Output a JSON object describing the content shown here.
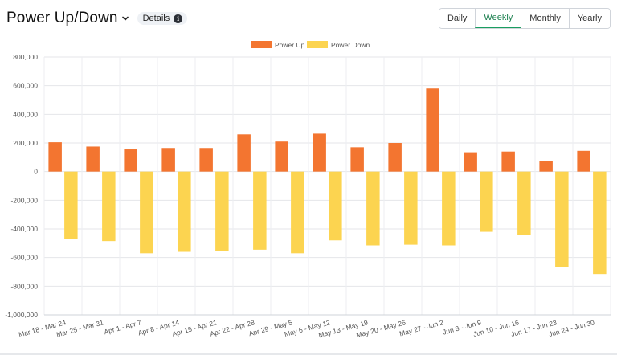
{
  "header": {
    "title": "Power Up/Down",
    "details_label": "Details",
    "info_icon": "info-icon",
    "dropdown_icon": "chevron-down-icon"
  },
  "tabs": [
    {
      "label": "Daily",
      "active": false
    },
    {
      "label": "Weekly",
      "active": true
    },
    {
      "label": "Monthly",
      "active": false
    },
    {
      "label": "Yearly",
      "active": false
    }
  ],
  "colors": {
    "up": "#f37530",
    "down": "#fcd450",
    "active_tab": "#1a9e60"
  },
  "chart_data": {
    "type": "bar",
    "title": "",
    "xlabel": "",
    "ylabel": "",
    "legend_position": "top-center",
    "grid": true,
    "ylim": [
      -1000000,
      800000
    ],
    "yticks": [
      800000,
      600000,
      400000,
      200000,
      0,
      -200000,
      -400000,
      -600000,
      -800000,
      -1000000
    ],
    "ytick_labels": [
      "800,000",
      "600,000",
      "400,000",
      "200,000",
      "0",
      "-200,000",
      "-400,000",
      "-600,000",
      "-800,000",
      "-1,000,000"
    ],
    "categories": [
      "Mar 18 - Mar 24",
      "Mar 25 - Mar 31",
      "Apr 1 - Apr 7",
      "Apr 8 - Apr 14",
      "Apr 15 - Apr 21",
      "Apr 22 - Apr 28",
      "Apr 29 - May 5",
      "May 6 - May 12",
      "May 13 - May 19",
      "May 20 - May 26",
      "May 27 - Jun 2",
      "Jun 3 - Jun 9",
      "Jun 10 - Jun 16",
      "Jun 17 - Jun 23",
      "Jun 24 - Jun 30"
    ],
    "series": [
      {
        "name": "Power Up",
        "color": "#f37530",
        "values": [
          205000,
          175000,
          155000,
          165000,
          165000,
          260000,
          210000,
          265000,
          170000,
          200000,
          580000,
          135000,
          140000,
          75000,
          145000
        ]
      },
      {
        "name": "Power Down",
        "color": "#fcd450",
        "values": [
          -470000,
          -485000,
          -570000,
          -560000,
          -555000,
          -545000,
          -570000,
          -480000,
          -515000,
          -510000,
          -515000,
          -420000,
          -440000,
          -665000,
          -715000
        ]
      }
    ]
  }
}
